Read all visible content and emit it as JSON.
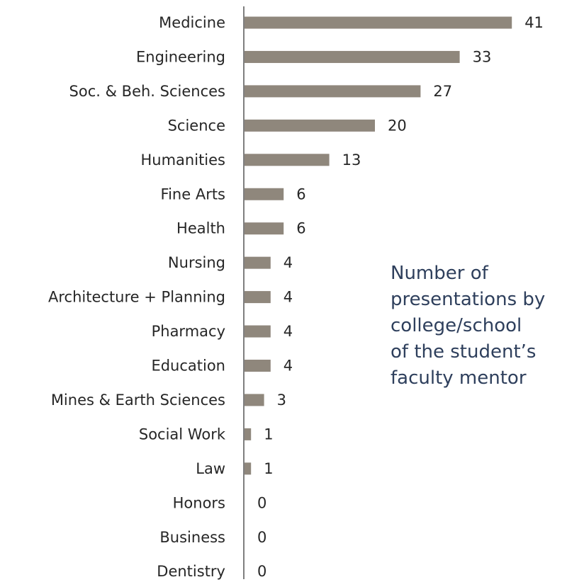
{
  "chart_data": {
    "type": "bar",
    "orientation": "horizontal",
    "categories": [
      "Medicine",
      "Engineering",
      "Soc. & Beh. Sciences",
      "Science",
      "Humanities",
      "Fine Arts",
      "Health",
      "Nursing",
      "Architecture + Planning",
      "Pharmacy",
      "Education",
      "Mines & Earth Sciences",
      "Social Work",
      "Law",
      "Honors",
      "Business",
      "Dentistry"
    ],
    "values": [
      41,
      33,
      27,
      20,
      13,
      6,
      6,
      4,
      4,
      4,
      4,
      3,
      1,
      1,
      0,
      0,
      0
    ],
    "title": "Number of\npresentations by\ncollege/school\nof the student’s\nfaculty mentor",
    "xlabel": "",
    "ylabel": "",
    "xlim": [
      0,
      41
    ],
    "grid": false,
    "legend": "none",
    "data_labels": true
  },
  "colors": {
    "bar": "#8f877c",
    "axis": "#7f7f7f",
    "text": "#262626",
    "caption": "#2e3f5c"
  }
}
